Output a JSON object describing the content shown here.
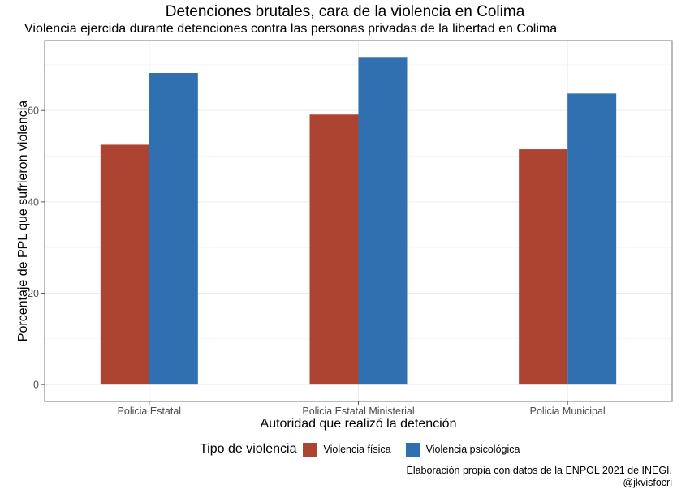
{
  "chart_data": {
    "type": "bar",
    "title": "Detenciones brutales, cara de la violencia en Colima",
    "subtitle": "Violencia ejercida durante detenciones contra las personas privadas de la libertad en Colima",
    "xlabel": "Autoridad que realizó la detención",
    "ylabel": "Porcentaje de PPL que sufrieron violencia",
    "categories": [
      "Policia Estatal",
      "Policia Estatal Ministerial",
      "Policia Municipal"
    ],
    "series": [
      {
        "name": "Violencia física",
        "color": "#ad4431",
        "values": [
          52.5,
          59.1,
          51.5
        ]
      },
      {
        "name": "Violencia psicológica",
        "color": "#3170b0",
        "values": [
          68.2,
          71.7,
          63.7
        ]
      }
    ],
    "yticks": [
      0,
      20,
      40,
      60
    ],
    "ylim": [
      -3.7,
      75.3
    ],
    "grid": true,
    "legend": {
      "title": "Tipo de violencia",
      "position": "bottom"
    },
    "caption": [
      "Elaboración propia con datos de la ENPOL 2021 de INEGI.",
      "@jkvisfocri"
    ]
  }
}
